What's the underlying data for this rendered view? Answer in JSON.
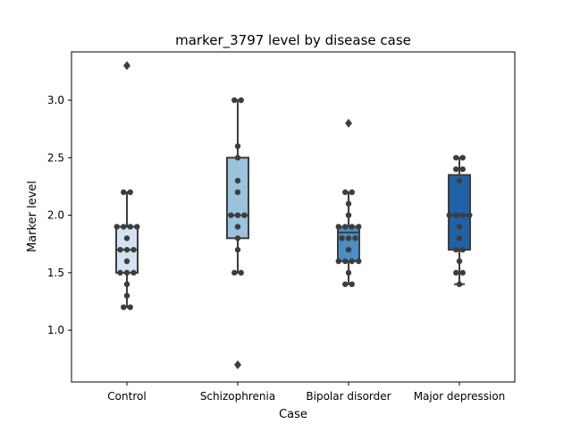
{
  "chart_data": {
    "type": "box",
    "title": "marker_3797 level by disease case",
    "xlabel": "Case",
    "ylabel": "Marker level",
    "ylim": [
      0.55,
      3.42
    ],
    "yticks": [
      1.0,
      1.5,
      2.0,
      2.5,
      3.0
    ],
    "ytick_labels": [
      "1.0",
      "1.5",
      "2.0",
      "2.5",
      "3.0"
    ],
    "grid": false,
    "legend": "none",
    "categories": [
      "Control",
      "Schizophrenia",
      "Bipolar disorder",
      "Major depression"
    ],
    "boxes": [
      {
        "category": "Control",
        "color": "#d3e3f3",
        "q1": 1.5,
        "median": 1.7,
        "q3": 1.9,
        "whisker_low": 1.2,
        "whisker_high": 2.2,
        "outliers": [
          3.3
        ],
        "points": [
          1.2,
          1.2,
          1.3,
          1.4,
          1.5,
          1.5,
          1.5,
          1.6,
          1.7,
          1.7,
          1.7,
          1.8,
          1.9,
          1.9,
          1.9,
          1.9,
          2.2,
          2.2
        ]
      },
      {
        "category": "Schizophrenia",
        "color": "#9ac3de",
        "q1": 1.8,
        "median": 2.0,
        "q3": 2.5,
        "whisker_low": 1.5,
        "whisker_high": 3.0,
        "outliers": [
          0.7
        ],
        "points": [
          1.5,
          1.5,
          1.7,
          1.8,
          1.9,
          2.0,
          2.0,
          2.0,
          2.2,
          2.3,
          2.5,
          2.6,
          3.0,
          3.0
        ]
      },
      {
        "category": "Bipolar disorder",
        "color": "#4a8ec3",
        "q1": 1.6,
        "median": 1.85,
        "q3": 1.9,
        "whisker_low": 1.4,
        "whisker_high": 2.2,
        "outliers": [
          2.8
        ],
        "points": [
          1.4,
          1.4,
          1.5,
          1.6,
          1.6,
          1.6,
          1.6,
          1.7,
          1.8,
          1.8,
          1.8,
          1.9,
          1.9,
          1.9,
          1.9,
          2.0,
          2.1,
          2.2,
          2.2
        ]
      },
      {
        "category": "Major depression",
        "color": "#1f62a8",
        "q1": 1.7,
        "median": 2.0,
        "q3": 2.35,
        "whisker_low": 1.4,
        "whisker_high": 2.5,
        "outliers": [],
        "points": [
          1.4,
          1.5,
          1.5,
          1.6,
          1.7,
          1.7,
          1.8,
          1.9,
          2.0,
          2.0,
          2.0,
          2.0,
          2.3,
          2.4,
          2.4,
          2.5,
          2.5
        ]
      }
    ]
  }
}
